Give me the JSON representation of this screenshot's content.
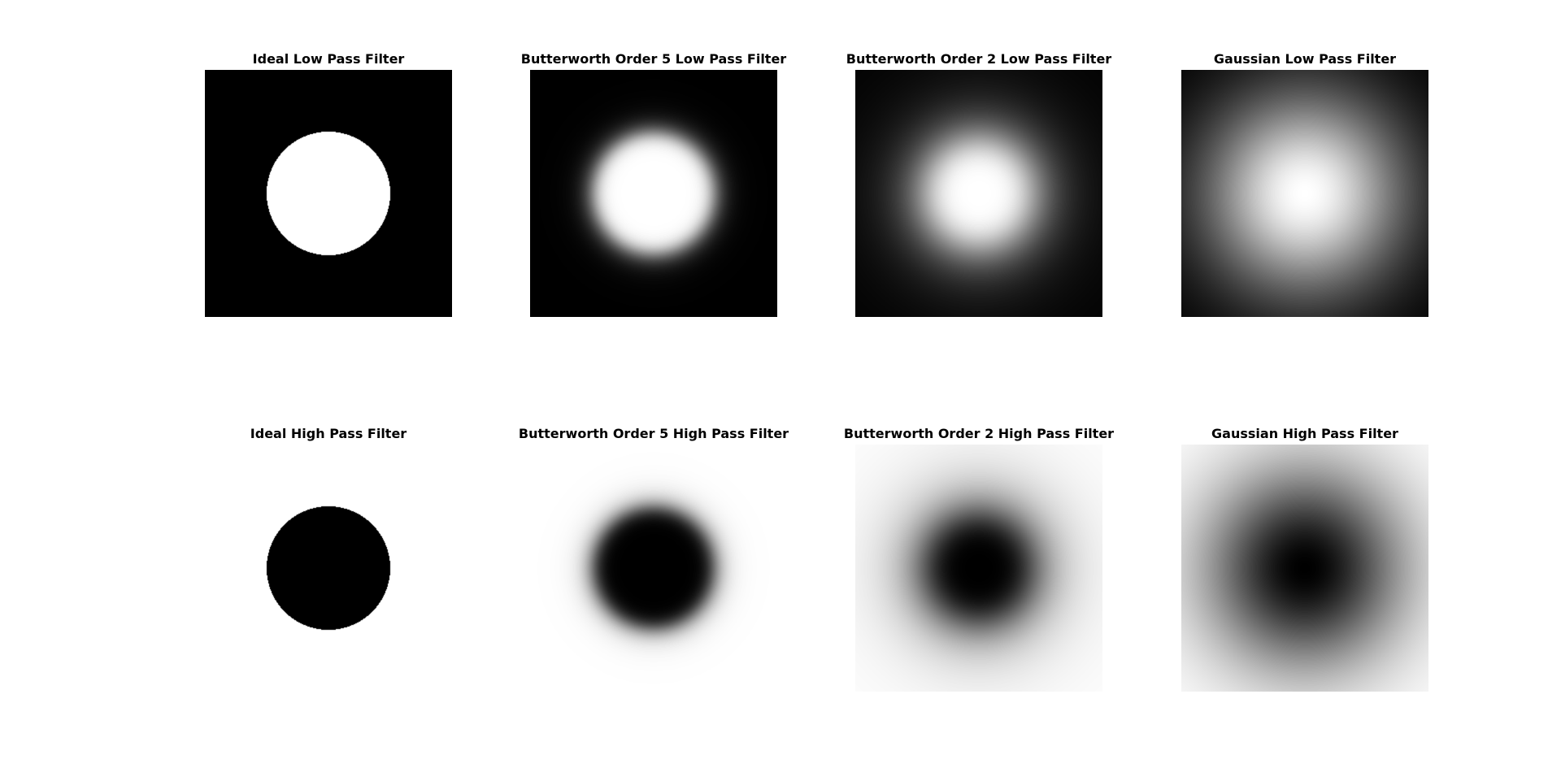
{
  "figure": {
    "panels": [
      {
        "title": "Ideal Low Pass Filter",
        "pass": "low",
        "filter": "ideal",
        "order": null
      },
      {
        "title": "Butterworth Order 5 Low Pass Filter",
        "pass": "low",
        "filter": "butterworth",
        "order": 5
      },
      {
        "title": "Butterworth Order 2 Low Pass Filter",
        "pass": "low",
        "filter": "butterworth",
        "order": 2
      },
      {
        "title": "Gaussian Low Pass Filter",
        "pass": "low",
        "filter": "gaussian",
        "order": null
      },
      {
        "title": "Ideal High Pass Filter",
        "pass": "high",
        "filter": "ideal",
        "order": null
      },
      {
        "title": "Butterworth Order 5 High Pass Filter",
        "pass": "high",
        "filter": "butterworth",
        "order": 5
      },
      {
        "title": "Butterworth Order 2 High Pass Filter",
        "pass": "high",
        "filter": "butterworth",
        "order": 2
      },
      {
        "title": "Gaussian High Pass Filter",
        "pass": "high",
        "filter": "gaussian",
        "order": null
      }
    ]
  }
}
